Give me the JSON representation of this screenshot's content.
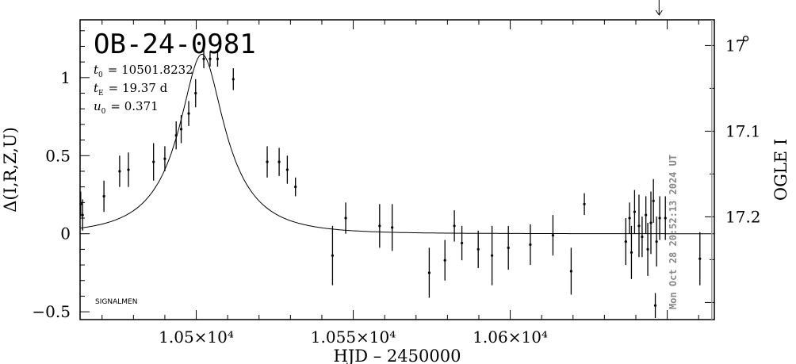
{
  "chart_data": {
    "type": "scatter",
    "title": "OB-24-0981",
    "xlabel": "HJD – 2450000",
    "ylabel": "Δ(I,R,Z,U)",
    "ylabel_right": "OGLE I",
    "xlim": [
      10463,
      10665
    ],
    "ylim": [
      -0.55,
      1.37
    ],
    "right_ylim": [
      16.97,
      17.32
    ],
    "x_ticks": [
      {
        "value": 10500,
        "label": "1.05×10⁴"
      },
      {
        "value": 10550,
        "label": "1.055×10⁴"
      },
      {
        "value": 10600,
        "label": "1.06×10⁴"
      }
    ],
    "y_ticks": [
      {
        "value": 1,
        "label": "1"
      },
      {
        "value": 0.5,
        "label": "0.5"
      },
      {
        "value": 0,
        "label": "0"
      },
      {
        "value": -0.5,
        "label": "−0.5"
      }
    ],
    "right_y_ticks": [
      {
        "value": 17.0,
        "label": "17"
      },
      {
        "value": 17.1,
        "label": "17.1"
      },
      {
        "value": 17.2,
        "label": "17.2"
      }
    ],
    "params": [
      {
        "name": "t",
        "sub": "0",
        "value": "= 10501.8232"
      },
      {
        "name": "t",
        "sub": "E",
        "value": "= 19.37 d"
      },
      {
        "name": "u",
        "sub": "0",
        "value": "= 0.371"
      }
    ],
    "model": {
      "t0": 10501.8232,
      "tE": 19.37,
      "u0": 0.371
    },
    "points": [
      {
        "x": 10463.2,
        "y": 0.19,
        "err": 0.08
      },
      {
        "x": 10463.8,
        "y": 0.12,
        "err": 0.1
      },
      {
        "x": 10470.6,
        "y": 0.24,
        "err": 0.1
      },
      {
        "x": 10475.6,
        "y": 0.4,
        "err": 0.1
      },
      {
        "x": 10478.4,
        "y": 0.41,
        "err": 0.11
      },
      {
        "x": 10486.4,
        "y": 0.46,
        "err": 0.12
      },
      {
        "x": 10490.0,
        "y": 0.48,
        "err": 0.08
      },
      {
        "x": 10493.6,
        "y": 0.63,
        "err": 0.09
      },
      {
        "x": 10495.2,
        "y": 0.67,
        "err": 0.09
      },
      {
        "x": 10497.6,
        "y": 0.77,
        "err": 0.08
      },
      {
        "x": 10499.8,
        "y": 0.9,
        "err": 0.09
      },
      {
        "x": 10502.4,
        "y": 1.12,
        "err": 0.06
      },
      {
        "x": 10504.4,
        "y": 1.12,
        "err": 0.05
      },
      {
        "x": 10506.8,
        "y": 1.12,
        "err": 0.05
      },
      {
        "x": 10511.8,
        "y": 0.99,
        "err": 0.07
      },
      {
        "x": 10522.6,
        "y": 0.46,
        "err": 0.1
      },
      {
        "x": 10526.4,
        "y": 0.46,
        "err": 0.09
      },
      {
        "x": 10529.0,
        "y": 0.41,
        "err": 0.09
      },
      {
        "x": 10531.6,
        "y": 0.3,
        "err": 0.06
      },
      {
        "x": 10543.4,
        "y": -0.14,
        "err": 0.19
      },
      {
        "x": 10547.6,
        "y": 0.1,
        "err": 0.1
      },
      {
        "x": 10558.4,
        "y": 0.05,
        "err": 0.14
      },
      {
        "x": 10562.4,
        "y": 0.04,
        "err": 0.15
      },
      {
        "x": 10574.2,
        "y": -0.25,
        "err": 0.16
      },
      {
        "x": 10579.2,
        "y": -0.17,
        "err": 0.13
      },
      {
        "x": 10582.2,
        "y": 0.05,
        "err": 0.1
      },
      {
        "x": 10584.6,
        "y": -0.06,
        "err": 0.11
      },
      {
        "x": 10589.8,
        "y": -0.1,
        "err": 0.12
      },
      {
        "x": 10594.2,
        "y": -0.14,
        "err": 0.19
      },
      {
        "x": 10599.4,
        "y": -0.09,
        "err": 0.14
      },
      {
        "x": 10606.4,
        "y": -0.07,
        "err": 0.13
      },
      {
        "x": 10613.6,
        "y": -0.01,
        "err": 0.13
      },
      {
        "x": 10619.4,
        "y": -0.24,
        "err": 0.15
      },
      {
        "x": 10623.6,
        "y": 0.19,
        "err": 0.07
      },
      {
        "x": 10636.8,
        "y": -0.05,
        "err": 0.15
      },
      {
        "x": 10638.0,
        "y": 0.1,
        "err": 0.1
      },
      {
        "x": 10638.6,
        "y": -0.12,
        "err": 0.17
      },
      {
        "x": 10639.6,
        "y": 0.14,
        "err": 0.14
      },
      {
        "x": 10641.0,
        "y": 0.05,
        "err": 0.2
      },
      {
        "x": 10642.0,
        "y": -0.02,
        "err": 0.13
      },
      {
        "x": 10643.2,
        "y": 0.12,
        "err": 0.12
      },
      {
        "x": 10643.8,
        "y": -0.1,
        "err": 0.17
      },
      {
        "x": 10644.8,
        "y": 0.07,
        "err": 0.2
      },
      {
        "x": 10645.6,
        "y": 0.21,
        "err": 0.14
      },
      {
        "x": 10646.6,
        "y": -0.05,
        "err": 0.16
      },
      {
        "x": 10647.6,
        "y": 0.1,
        "err": 0.14
      },
      {
        "x": 10649.4,
        "y": 0.1,
        "err": 0.14
      },
      {
        "x": 10646.2,
        "y": -0.46,
        "err": 0.08
      },
      {
        "x": 10660.4,
        "y": -0.16,
        "err": 0.17
      }
    ],
    "now_line_x": 10664.2,
    "arrow_x": 10647.4,
    "open_marker": {
      "x": 10675.0,
      "y": 1.25
    },
    "grid": false,
    "legend": "none"
  },
  "labels": {
    "signalmen": "SIGNALMEN",
    "timestamp": "Mon Oct 28 20:52:13 2024 UT"
  }
}
